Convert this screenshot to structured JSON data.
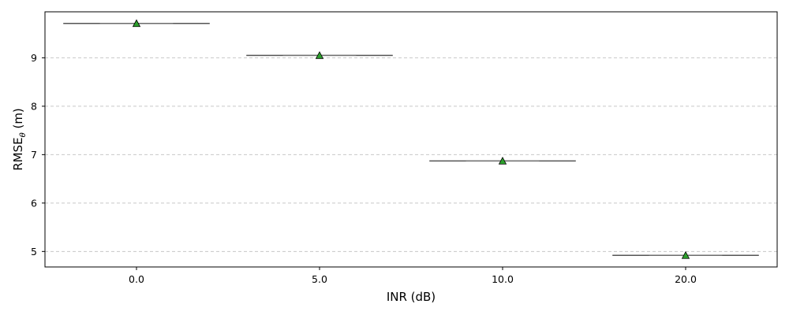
{
  "chart_data": {
    "type": "box",
    "categories": [
      "0.0",
      "5.0",
      "10.0",
      "20.0"
    ],
    "values": [
      9.71,
      9.05,
      6.87,
      4.92
    ],
    "means": [
      9.71,
      9.05,
      6.87,
      4.92
    ],
    "xlabel": "INR (dB)",
    "ylabel_main": "RMSE",
    "ylabel_sub": "θ",
    "ylabel_tail": " (m)",
    "yticks": [
      "5",
      "6",
      "7",
      "8",
      "9"
    ],
    "ylim": [
      4.68,
      9.95
    ],
    "grid": "y-dashed",
    "colors": {
      "box": "#555555",
      "mean_marker": "#2ca02c",
      "mean_edge": "#000000",
      "grid": "#c8c8c8"
    }
  }
}
